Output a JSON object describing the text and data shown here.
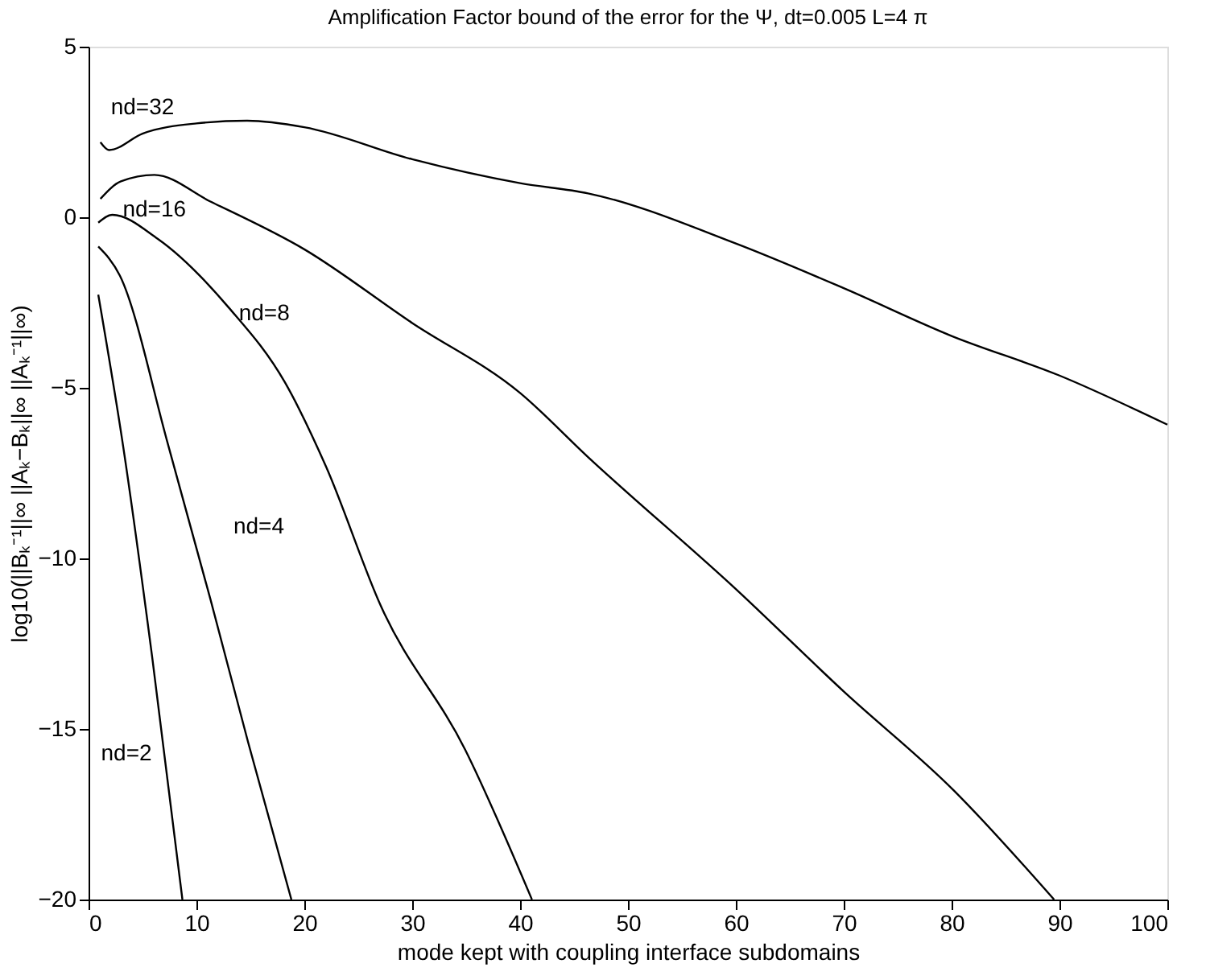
{
  "chart_data": {
    "type": "line",
    "title": "Amplification Factor bound of the error for the Ψ, dt=0.005 L=4 π",
    "xlabel": "mode kept with coupling interface subdomains",
    "ylabel": "log10(||Bₖ⁻¹||∞ ||Aₖ−Bₖ||∞ ||Aₖ⁻¹||∞)",
    "xlim": [
      0,
      100
    ],
    "ylim": [
      -20,
      5
    ],
    "xticks": [
      0,
      10,
      20,
      30,
      40,
      50,
      60,
      70,
      80,
      90,
      100
    ],
    "yticks": [
      -20,
      -15,
      -10,
      -5,
      0,
      5
    ],
    "grid": false,
    "legend": false,
    "marker": "none",
    "line_style": "solid",
    "series": [
      {
        "name": "nd=32",
        "color": "#000000",
        "x": [
          1.1,
          1.9,
          5,
          10,
          14.7,
          20,
          30,
          40,
          46.3,
          60,
          70,
          80,
          90,
          100
        ],
        "values": [
          2.2,
          1.97,
          2.45,
          2.75,
          2.83,
          2.64,
          1.7,
          1.0,
          0.7,
          -0.77,
          -2.08,
          -3.48,
          -4.64,
          -6.08
        ]
      },
      {
        "name": "nd=16",
        "color": "#000000",
        "x": [
          1.1,
          3,
          6.1,
          11.3,
          20,
          30,
          40,
          46.3,
          60,
          70,
          80.2,
          89.5
        ],
        "values": [
          0.54,
          1.05,
          1.24,
          0.46,
          -0.94,
          -3.1,
          -5.15,
          -7.03,
          -10.9,
          -13.9,
          -16.8,
          -20
        ]
      },
      {
        "name": "nd=8",
        "color": "#000000",
        "x": [
          0.9,
          2.2,
          6.4,
          13,
          18.2,
          22,
          27.1,
          34.9,
          41.1
        ],
        "values": [
          -0.16,
          0.07,
          -0.63,
          -2.65,
          -4.84,
          -7.3,
          -11.4,
          -15.6,
          -20
        ]
      },
      {
        "name": "nd=4",
        "color": "#000000",
        "x": [
          0.9,
          2.9,
          7.4,
          11.3,
          14.8,
          18.8
        ],
        "values": [
          -0.86,
          -1.71,
          -6.7,
          -11.2,
          -15.4,
          -20
        ]
      },
      {
        "name": "nd=2",
        "color": "#000000",
        "x": [
          0.9,
          3.2,
          5.9,
          8.7
        ],
        "values": [
          -2.27,
          -6.7,
          -12.9,
          -20
        ]
      }
    ]
  }
}
